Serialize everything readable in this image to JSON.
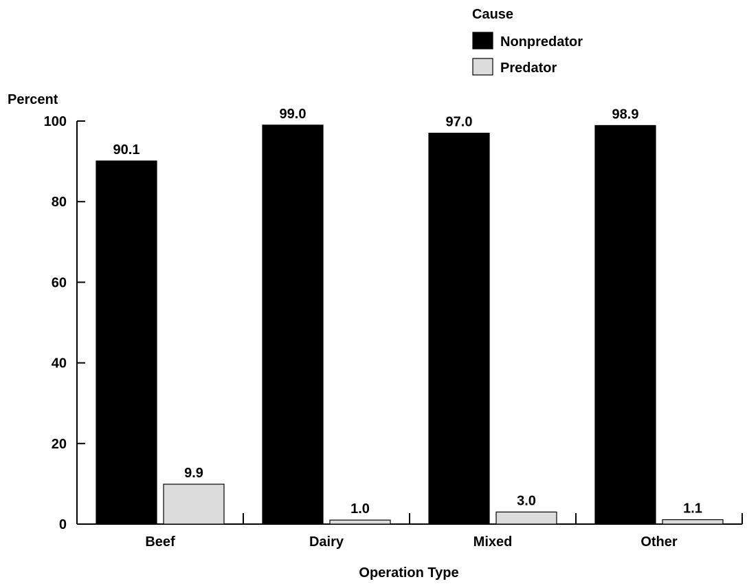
{
  "chart_data": {
    "type": "bar",
    "title": "",
    "xlabel": "Operation Type",
    "ylabel": "Percent",
    "categories": [
      "Beef",
      "Dairy",
      "Mixed",
      "Other"
    ],
    "series": [
      {
        "name": "Nonpredator",
        "values": [
          90.1,
          99.0,
          97.0,
          98.9
        ],
        "labels": [
          "90.1",
          "99.0",
          "97.0",
          "98.9"
        ],
        "color": "#000000"
      },
      {
        "name": "Predator",
        "values": [
          9.9,
          1.0,
          3.0,
          1.1
        ],
        "labels": [
          "9.9",
          "1.0",
          "3.0",
          "1.1"
        ],
        "color": "#dcdcdc"
      }
    ],
    "legend": {
      "title": "Cause",
      "position": "top-right"
    },
    "ylim": [
      0,
      100
    ],
    "yticks": [
      "0",
      "20",
      "40",
      "60",
      "80",
      "100"
    ],
    "grid": false
  }
}
